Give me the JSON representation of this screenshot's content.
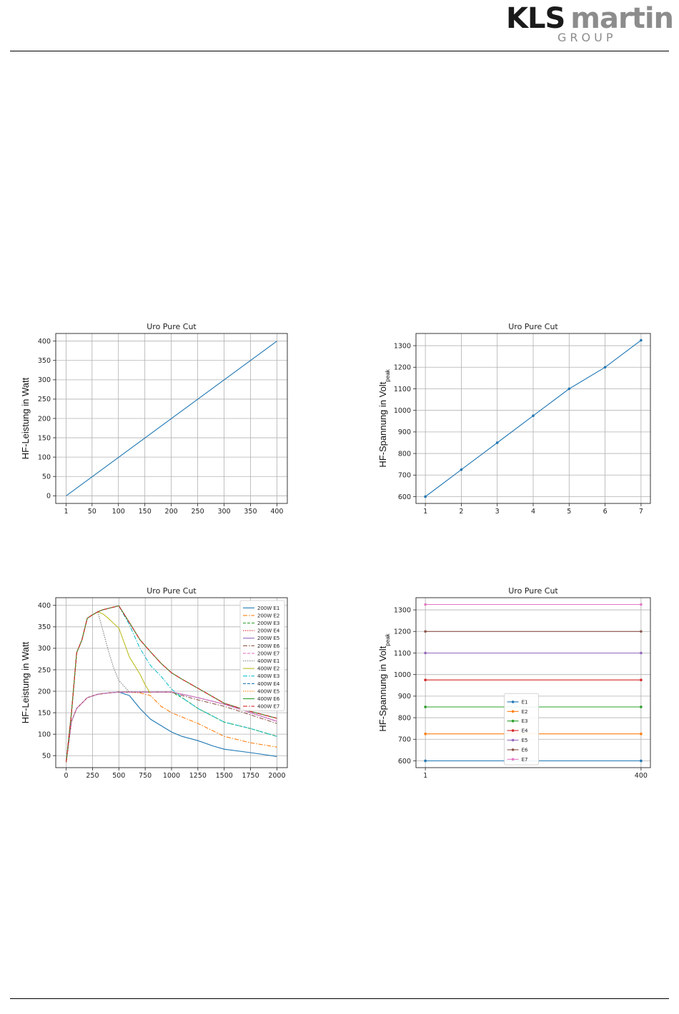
{
  "header": {
    "logo_kls": "KLS",
    "logo_martin": "martin",
    "logo_group": "GROUP"
  },
  "chart_data": [
    {
      "type": "line",
      "title": "Uro Pure Cut",
      "xlabel": "",
      "ylabel": "HF-Leistung in Watt",
      "xlim": [
        1,
        400
      ],
      "ylim": [
        0,
        400
      ],
      "xticks": [
        1,
        50,
        100,
        150,
        200,
        250,
        300,
        350,
        400
      ],
      "yticks": [
        0,
        50,
        100,
        150,
        200,
        250,
        300,
        350,
        400
      ],
      "grid": true,
      "series": [
        {
          "color": "#1f77b4",
          "marker": "",
          "dash": "",
          "x": [
            1,
            400
          ],
          "y": [
            0,
            400
          ]
        }
      ]
    },
    {
      "type": "line",
      "title": "Uro Pure Cut",
      "xlabel": "",
      "ylabel": "HF-Spannung in Volt",
      "ylabel_sub": "peak",
      "xlim": [
        1,
        7
      ],
      "ylim": [
        600,
        1325
      ],
      "xticks": [
        1,
        2,
        3,
        4,
        5,
        6,
        7
      ],
      "yticks": [
        600,
        700,
        800,
        900,
        1000,
        1100,
        1200,
        1300
      ],
      "grid": true,
      "series": [
        {
          "color": "#1f77b4",
          "marker": "dot",
          "dash": "",
          "x": [
            1,
            2,
            3,
            4,
            5,
            6,
            7
          ],
          "y": [
            600,
            725,
            850,
            975,
            1100,
            1200,
            1325
          ]
        }
      ]
    },
    {
      "type": "line",
      "title": "Uro Pure Cut",
      "xlabel": "",
      "ylabel": "HF-Leistung in Watt",
      "xlim": [
        0,
        2000
      ],
      "ylim": [
        30,
        410
      ],
      "xticks": [
        0,
        250,
        500,
        750,
        1000,
        1250,
        1500,
        1750,
        2000
      ],
      "yticks": [
        50,
        100,
        150,
        200,
        250,
        300,
        350,
        400
      ],
      "grid": true,
      "legend": "top-right",
      "series": [
        {
          "name": "200W E1",
          "color": "#1f77b4",
          "dash": "",
          "x": [
            0,
            50,
            100,
            200,
            300,
            400,
            500,
            600,
            700,
            800,
            900,
            1000,
            1100,
            1250,
            1400,
            1500,
            1750,
            2000
          ],
          "y": [
            35,
            130,
            160,
            185,
            193,
            196,
            198,
            190,
            160,
            135,
            120,
            105,
            95,
            85,
            72,
            65,
            57,
            48
          ]
        },
        {
          "name": "200W E2",
          "color": "#ff7f0e",
          "dash": "6,2,1.5,2",
          "x": [
            0,
            50,
            100,
            200,
            300,
            400,
            500,
            600,
            700,
            800,
            900,
            1000,
            1250,
            1500,
            1750,
            2000
          ],
          "y": [
            35,
            130,
            160,
            185,
            193,
            196,
            198,
            198,
            196,
            190,
            165,
            150,
            125,
            95,
            80,
            70
          ]
        },
        {
          "name": "200W E3",
          "color": "#2ca02c",
          "dash": "4,2",
          "x": [
            0,
            50,
            100,
            200,
            300,
            400,
            500,
            600,
            700,
            800,
            900,
            1000,
            1100,
            1250,
            1500,
            1750,
            2000
          ],
          "y": [
            35,
            130,
            160,
            185,
            193,
            196,
            198,
            198,
            198,
            198,
            198,
            198,
            185,
            160,
            128,
            113,
            95
          ]
        },
        {
          "name": "200W E4",
          "color": "#d62728",
          "dash": "1.5,1.5",
          "x": [
            0,
            50,
            100,
            200,
            300,
            400,
            500,
            600,
            700,
            800,
            900,
            1000,
            1100,
            1250,
            1500,
            1750,
            2000
          ],
          "y": [
            35,
            130,
            160,
            185,
            193,
            196,
            198,
            198,
            198,
            198,
            198,
            198,
            193,
            185,
            170,
            150,
            130
          ]
        },
        {
          "name": "200W E5",
          "color": "#9467bd",
          "dash": "",
          "x": [
            0,
            50,
            100,
            200,
            300,
            400,
            500,
            600,
            700,
            800,
            900,
            1000,
            1100,
            1250,
            1500,
            1750,
            2000
          ],
          "y": [
            35,
            130,
            160,
            185,
            193,
            196,
            198,
            198,
            198,
            198,
            198,
            198,
            193,
            185,
            170,
            150,
            130
          ]
        },
        {
          "name": "200W E6",
          "color": "#8c564b",
          "dash": "6,2,1.5,2",
          "x": [
            0,
            50,
            100,
            200,
            300,
            400,
            500,
            600,
            700,
            800,
            900,
            1000,
            1100,
            1250,
            1500,
            1750,
            2000
          ],
          "y": [
            35,
            130,
            160,
            185,
            193,
            196,
            198,
            198,
            198,
            198,
            198,
            198,
            190,
            180,
            165,
            145,
            125
          ]
        },
        {
          "name": "200W E7",
          "color": "#e377c2",
          "dash": "4,2",
          "x": [
            0,
            50,
            100,
            200,
            300,
            400,
            500,
            600,
            700,
            800,
            900,
            1000,
            1100,
            1250,
            1500,
            1750,
            2000
          ],
          "y": [
            35,
            130,
            160,
            185,
            193,
            196,
            198,
            198,
            198,
            198,
            198,
            198,
            193,
            185,
            170,
            150,
            130
          ]
        },
        {
          "name": "400W E1",
          "color": "#7f7f7f",
          "dash": "1.5,1.5",
          "x": [
            0,
            50,
            100,
            150,
            200,
            250,
            300,
            350,
            400,
            450,
            500,
            600
          ],
          "y": [
            35,
            150,
            290,
            320,
            370,
            378,
            385,
            340,
            295,
            255,
            225,
            198
          ]
        },
        {
          "name": "400W E2",
          "color": "#bcbd22",
          "dash": "",
          "x": [
            0,
            50,
            100,
            150,
            200,
            250,
            300,
            350,
            400,
            450,
            500,
            600,
            700,
            750,
            800
          ],
          "y": [
            35,
            150,
            290,
            320,
            370,
            378,
            385,
            380,
            370,
            358,
            347,
            280,
            240,
            215,
            195
          ]
        },
        {
          "name": "400W E3",
          "color": "#17becf",
          "dash": "6,2,1.5,2",
          "x": [
            0,
            50,
            100,
            150,
            200,
            250,
            300,
            350,
            400,
            450,
            500,
            600,
            700,
            800,
            900,
            1000,
            1100,
            1250,
            1500,
            1750,
            2000
          ],
          "y": [
            35,
            150,
            290,
            320,
            370,
            378,
            385,
            390,
            393,
            396,
            399,
            355,
            300,
            260,
            235,
            205,
            185,
            160,
            128,
            113,
            95
          ]
        },
        {
          "name": "400W E4",
          "color": "#1f77b4",
          "dash": "4,2",
          "x": [
            0,
            50,
            100,
            150,
            200,
            250,
            300,
            350,
            400,
            450,
            500,
            600,
            700,
            800,
            900,
            1000,
            1100,
            1250,
            1500,
            1750,
            2000
          ],
          "y": [
            35,
            150,
            290,
            320,
            370,
            378,
            385,
            390,
            393,
            396,
            399,
            360,
            320,
            292,
            265,
            243,
            228,
            207,
            172,
            153,
            137
          ]
        },
        {
          "name": "400W E5",
          "color": "#ff7f0e",
          "dash": "1.5,1.5",
          "x": [
            0,
            50,
            100,
            150,
            200,
            250,
            300,
            350,
            400,
            450,
            500,
            600,
            700,
            800,
            900,
            1000,
            1100,
            1250,
            1500,
            1750,
            2000
          ],
          "y": [
            35,
            150,
            290,
            320,
            370,
            378,
            385,
            390,
            393,
            396,
            399,
            360,
            320,
            292,
            265,
            243,
            228,
            207,
            172,
            153,
            137
          ]
        },
        {
          "name": "400W E6",
          "color": "#2ca02c",
          "dash": "",
          "x": [
            0,
            50,
            100,
            150,
            200,
            250,
            300,
            350,
            400,
            450,
            500,
            600,
            700,
            800,
            900,
            1000,
            1100,
            1250,
            1500,
            1750,
            2000
          ],
          "y": [
            35,
            150,
            290,
            320,
            370,
            378,
            385,
            390,
            393,
            396,
            399,
            360,
            320,
            292,
            265,
            243,
            228,
            207,
            172,
            153,
            137
          ]
        },
        {
          "name": "400W E7",
          "color": "#d62728",
          "dash": "6,2,1.5,2",
          "x": [
            0,
            50,
            100,
            150,
            200,
            250,
            300,
            350,
            400,
            450,
            500,
            600,
            700,
            800,
            900,
            1000,
            1100,
            1250,
            1500,
            1750,
            2000
          ],
          "y": [
            35,
            150,
            290,
            320,
            370,
            378,
            385,
            390,
            393,
            396,
            399,
            360,
            320,
            292,
            265,
            243,
            228,
            207,
            172,
            153,
            137
          ]
        }
      ]
    },
    {
      "type": "line",
      "title": "Uro Pure Cut",
      "xlabel": "",
      "ylabel": "HF-Spannung in Volt",
      "ylabel_sub": "peak",
      "xlim": [
        1,
        400
      ],
      "ylim": [
        600,
        1325
      ],
      "xticks": [
        1,
        400
      ],
      "yticks": [
        600,
        700,
        800,
        900,
        1000,
        1100,
        1200,
        1300
      ],
      "grid": true,
      "legend": "lower-center",
      "series": [
        {
          "name": "E1",
          "color": "#1f77b4",
          "marker": "dot",
          "x": [
            1,
            400
          ],
          "y": [
            600,
            600
          ]
        },
        {
          "name": "E2",
          "color": "#ff7f0e",
          "marker": "dot",
          "x": [
            1,
            400
          ],
          "y": [
            725,
            725
          ]
        },
        {
          "name": "E3",
          "color": "#2ca02c",
          "marker": "dot",
          "x": [
            1,
            400
          ],
          "y": [
            850,
            850
          ]
        },
        {
          "name": "E4",
          "color": "#d62728",
          "marker": "dot",
          "x": [
            1,
            400
          ],
          "y": [
            975,
            975
          ]
        },
        {
          "name": "E5",
          "color": "#9467bd",
          "marker": "dot",
          "x": [
            1,
            400
          ],
          "y": [
            1100,
            1100
          ]
        },
        {
          "name": "E6",
          "color": "#8c564b",
          "marker": "dot",
          "x": [
            1,
            400
          ],
          "y": [
            1200,
            1200
          ]
        },
        {
          "name": "E7",
          "color": "#e377c2",
          "marker": "dot",
          "x": [
            1,
            400
          ],
          "y": [
            1325,
            1325
          ]
        }
      ]
    }
  ]
}
